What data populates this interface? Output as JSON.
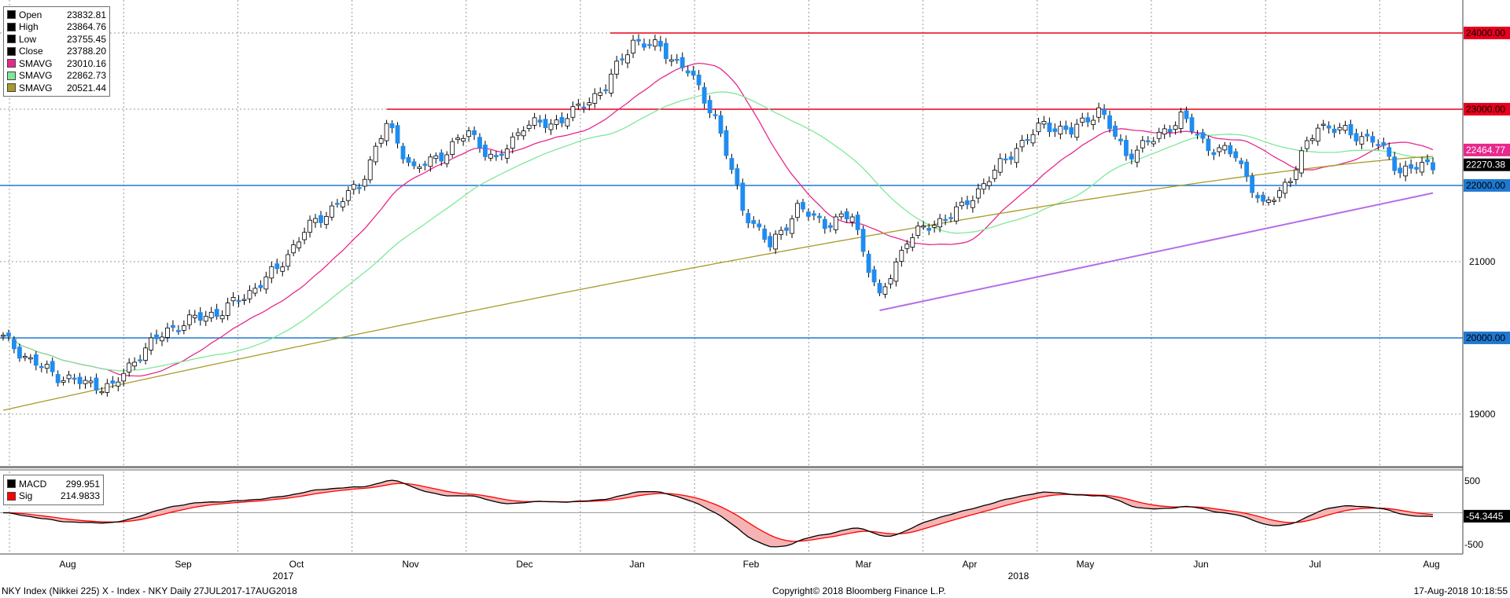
{
  "legend": {
    "items": [
      {
        "name": "Open",
        "value": "23832.81",
        "color": "#000000"
      },
      {
        "name": "High",
        "value": "23864.76",
        "color": "#000000"
      },
      {
        "name": "Low",
        "value": "23755.45",
        "color": "#000000"
      },
      {
        "name": "Close",
        "value": "23788.20",
        "color": "#000000"
      },
      {
        "name": "SMAVG",
        "value": "23010.16",
        "color": "#e8288c"
      },
      {
        "name": "SMAVG",
        "value": "22862.73",
        "color": "#7ee89a"
      },
      {
        "name": "SMAVG",
        "value": "20521.44",
        "color": "#a89a2a"
      }
    ]
  },
  "macd_legend": {
    "items": [
      {
        "name": "MACD",
        "value": "299.951",
        "color": "#000000"
      },
      {
        "name": "Sig",
        "value": "214.9833",
        "color": "#ff0000"
      }
    ]
  },
  "footer": {
    "left": "NKY Index (Nikkei 225) X - Index - NKY  Daily 27JUL2017-17AUG2018",
    "center": "Copyright© 2018 Bloomberg Finance L.P.",
    "right": "17-Aug-2018 10:18:55"
  },
  "chart_data": [
    {
      "type": "candlestick",
      "title": "",
      "y_ticks": [
        19000,
        21000,
        23000
      ],
      "ylim": [
        18350,
        24350
      ],
      "x_labels": [
        "Aug",
        "Sep",
        "Oct",
        "Nov",
        "Dec",
        "Jan",
        "Feb",
        "Mar",
        "Apr",
        "May",
        "Jun",
        "Jul",
        "Aug"
      ],
      "year_labels": [
        "2017",
        "2018"
      ],
      "grid": true,
      "horizontal_levels": [
        {
          "value": 24000,
          "label": "24000.00",
          "color": "#e8001c"
        },
        {
          "value": 23000,
          "label": "23000.00",
          "color": "#e8001c"
        },
        {
          "value": 22000,
          "label": "22000.00",
          "color": "#1f78d1"
        },
        {
          "value": 20000,
          "label": "20000.00",
          "color": "#1f78d1"
        }
      ],
      "value_tags": [
        {
          "value": 22464.77,
          "label": "22464.77",
          "color": "#e8288c"
        },
        {
          "value": 22270.38,
          "label": "22270.38",
          "color": "#000000"
        }
      ],
      "trendline": {
        "from": [
          160,
          20360
        ],
        "to": [
          261,
          21900
        ],
        "color": "#b46ee8"
      },
      "anchors": [
        [
          0,
          20000
        ],
        [
          5,
          19700
        ],
        [
          10,
          19500
        ],
        [
          15,
          19400
        ],
        [
          20,
          19350
        ],
        [
          25,
          19800
        ],
        [
          30,
          20100
        ],
        [
          35,
          20250
        ],
        [
          40,
          20350
        ],
        [
          45,
          20600
        ],
        [
          50,
          20900
        ],
        [
          55,
          21400
        ],
        [
          60,
          21700
        ],
        [
          65,
          22000
        ],
        [
          70,
          22800
        ],
        [
          75,
          22200
        ],
        [
          80,
          22400
        ],
        [
          85,
          22700
        ],
        [
          90,
          22300
        ],
        [
          95,
          22800
        ],
        [
          100,
          22800
        ],
        [
          105,
          23000
        ],
        [
          110,
          23300
        ],
        [
          115,
          23900
        ],
        [
          120,
          23800
        ],
        [
          125,
          23500
        ],
        [
          130,
          22900
        ],
        [
          135,
          21700
        ],
        [
          140,
          21200
        ],
        [
          145,
          21700
        ],
        [
          150,
          21500
        ],
        [
          155,
          21600
        ],
        [
          160,
          20500
        ],
        [
          165,
          21300
        ],
        [
          170,
          21500
        ],
        [
          175,
          21700
        ],
        [
          180,
          22100
        ],
        [
          185,
          22500
        ],
        [
          190,
          22800
        ],
        [
          195,
          22700
        ],
        [
          200,
          23000
        ],
        [
          205,
          22400
        ],
        [
          210,
          22600
        ],
        [
          215,
          22900
        ],
        [
          220,
          22500
        ],
        [
          225,
          22400
        ],
        [
          230,
          21700
        ],
        [
          235,
          22100
        ],
        [
          240,
          22800
        ],
        [
          245,
          22700
        ],
        [
          250,
          22600
        ],
        [
          255,
          22200
        ],
        [
          261,
          22270
        ]
      ],
      "series": [
        {
          "name": "SMAVG",
          "color": "#e8288c",
          "window": 20
        },
        {
          "name": "SMAVG",
          "color": "#7ee89a",
          "window": 40
        },
        {
          "name": "SMAVG",
          "color": "#a89a2a",
          "window": 200,
          "start_value": 19050,
          "end_value": 22380
        }
      ]
    },
    {
      "type": "line",
      "title": "",
      "y_ticks": [
        500,
        -500
      ],
      "ylim": [
        -650,
        650
      ],
      "value_tags": [
        {
          "value": -54.3445,
          "label": "-54.3445",
          "color": "#000000"
        }
      ],
      "series": [
        {
          "name": "MACD",
          "color": "#000000"
        },
        {
          "name": "Sig",
          "color": "#ff0000"
        }
      ]
    }
  ]
}
